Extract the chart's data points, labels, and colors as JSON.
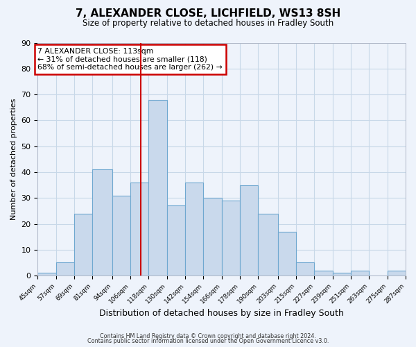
{
  "title": "7, ALEXANDER CLOSE, LICHFIELD, WS13 8SH",
  "subtitle": "Size of property relative to detached houses in Fradley South",
  "xlabel": "Distribution of detached houses by size in Fradley South",
  "ylabel": "Number of detached properties",
  "footer_line1": "Contains HM Land Registry data © Crown copyright and database right 2024.",
  "footer_line2": "Contains public sector information licensed under the Open Government Licence v3.0.",
  "bin_edges": [
    45,
    57,
    69,
    81,
    94,
    106,
    118,
    130,
    142,
    154,
    166,
    178,
    190,
    203,
    215,
    227,
    239,
    251,
    263,
    275,
    287
  ],
  "bin_labels": [
    "45sqm",
    "57sqm",
    "69sqm",
    "81sqm",
    "94sqm",
    "106sqm",
    "118sqm",
    "130sqm",
    "142sqm",
    "154sqm",
    "166sqm",
    "178sqm",
    "190sqm",
    "203sqm",
    "215sqm",
    "227sqm",
    "239sqm",
    "251sqm",
    "263sqm",
    "275sqm",
    "287sqm"
  ],
  "counts": [
    1,
    5,
    24,
    41,
    31,
    36,
    68,
    27,
    36,
    30,
    29,
    35,
    24,
    17,
    5,
    2,
    1,
    2,
    0,
    2
  ],
  "bar_color": "#c9d9ec",
  "bar_edgecolor": "#6fa8d0",
  "vline_x": 113,
  "ylim": [
    0,
    90
  ],
  "yticks": [
    0,
    10,
    20,
    30,
    40,
    50,
    60,
    70,
    80,
    90
  ],
  "annotation_box_title": "7 ALEXANDER CLOSE: 113sqm",
  "annotation_line1": "← 31% of detached houses are smaller (118)",
  "annotation_line2": "68% of semi-detached houses are larger (262) →",
  "annotation_box_color": "#ffffff",
  "annotation_box_edgecolor": "#cc0000",
  "vline_color": "#cc0000",
  "grid_color": "#c8d8e8",
  "bg_color": "#eef3fb"
}
